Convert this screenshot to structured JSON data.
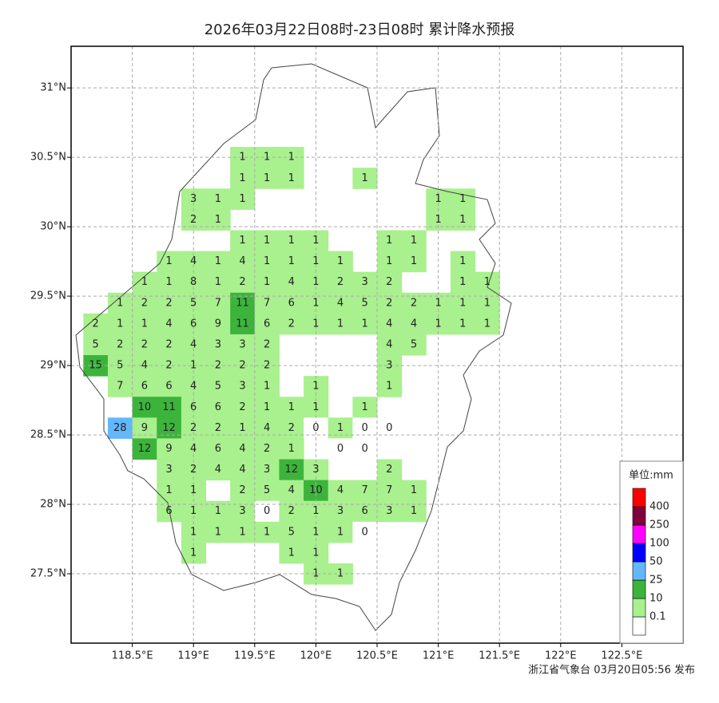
{
  "map": {
    "title": "2026年03月22日08时-23日08时 累计降水预报",
    "footer": "浙江省气象台 03月20日05:56 发布",
    "xlim": [
      118,
      123
    ],
    "ylim": [
      27,
      31.3
    ],
    "xticks": [
      {
        "value": 118.5,
        "label": "118.5°E"
      },
      {
        "value": 119,
        "label": "119°E"
      },
      {
        "value": 119.5,
        "label": "119.5°E"
      },
      {
        "value": 120,
        "label": "120°E"
      },
      {
        "value": 120.5,
        "label": "120.5°E"
      },
      {
        "value": 121,
        "label": "121°E"
      },
      {
        "value": 121.5,
        "label": "121.5°E"
      },
      {
        "value": 122,
        "label": "122°E"
      },
      {
        "value": 122.5,
        "label": "122.5°E"
      }
    ],
    "yticks": [
      {
        "value": 27.5,
        "label": "27.5°N"
      },
      {
        "value": 28,
        "label": "28°N"
      },
      {
        "value": 28.5,
        "label": "28.5°N"
      },
      {
        "value": 29,
        "label": "29°N"
      },
      {
        "value": 29.5,
        "label": "29.5°N"
      },
      {
        "value": 30,
        "label": "30°N"
      },
      {
        "value": 30.5,
        "label": "30.5°N"
      },
      {
        "value": 31,
        "label": "31°N"
      }
    ],
    "grid": true,
    "lons": [
      118.2,
      118.4,
      118.6,
      118.8,
      119.0,
      119.2,
      119.4,
      119.6,
      119.8,
      120.0,
      120.2,
      120.4,
      120.6,
      120.8,
      121.0,
      121.2,
      121.4
    ],
    "lats": [
      30.5,
      30.35,
      30.2,
      30.05,
      29.9,
      29.75,
      29.6,
      29.45,
      29.3,
      29.15,
      29.0,
      28.85,
      28.7,
      28.55,
      28.4,
      28.25,
      28.1,
      27.95,
      27.8,
      27.65,
      27.5
    ],
    "values": [
      [
        null,
        null,
        null,
        null,
        null,
        null,
        1,
        1,
        1,
        null,
        null,
        null,
        null,
        null,
        null,
        null,
        null
      ],
      [
        null,
        null,
        null,
        null,
        null,
        null,
        1,
        1,
        1,
        null,
        null,
        1,
        null,
        null,
        null,
        null,
        null
      ],
      [
        null,
        null,
        null,
        null,
        3,
        1,
        1,
        null,
        null,
        null,
        null,
        null,
        null,
        null,
        1,
        1,
        null
      ],
      [
        null,
        null,
        null,
        null,
        2,
        1,
        null,
        null,
        null,
        null,
        null,
        null,
        null,
        null,
        1,
        1,
        null
      ],
      [
        null,
        null,
        null,
        null,
        null,
        null,
        1,
        1,
        1,
        1,
        null,
        null,
        1,
        1,
        null,
        null,
        null
      ],
      [
        null,
        null,
        null,
        1,
        4,
        1,
        4,
        1,
        1,
        1,
        1,
        null,
        1,
        1,
        null,
        1,
        null
      ],
      [
        null,
        null,
        1,
        1,
        8,
        1,
        2,
        1,
        4,
        1,
        2,
        3,
        2,
        null,
        null,
        1,
        1
      ],
      [
        null,
        1,
        2,
        2,
        5,
        7,
        11,
        7,
        6,
        1,
        4,
        5,
        2,
        2,
        1,
        1,
        1
      ],
      [
        2,
        1,
        1,
        4,
        6,
        9,
        11,
        6,
        2,
        1,
        1,
        1,
        4,
        4,
        1,
        1,
        1
      ],
      [
        5,
        2,
        2,
        2,
        4,
        3,
        3,
        2,
        null,
        null,
        null,
        null,
        4,
        5,
        null,
        null,
        null
      ],
      [
        15,
        5,
        4,
        2,
        1,
        2,
        2,
        2,
        null,
        null,
        null,
        null,
        3,
        null,
        null,
        null,
        null
      ],
      [
        null,
        7,
        6,
        6,
        4,
        5,
        3,
        1,
        null,
        1,
        null,
        null,
        1,
        null,
        null,
        null,
        null
      ],
      [
        null,
        null,
        10,
        11,
        6,
        6,
        2,
        1,
        1,
        1,
        null,
        1,
        null,
        null,
        null,
        null,
        null
      ],
      [
        null,
        28,
        9,
        12,
        2,
        2,
        1,
        4,
        2,
        0,
        1,
        0,
        0,
        null,
        null,
        null,
        null
      ],
      [
        null,
        null,
        12,
        9,
        4,
        6,
        4,
        2,
        1,
        null,
        0,
        0,
        null,
        null,
        null,
        null,
        null
      ],
      [
        null,
        null,
        null,
        3,
        2,
        4,
        4,
        3,
        12,
        3,
        null,
        null,
        2,
        null,
        null,
        null,
        null
      ],
      [
        null,
        null,
        null,
        1,
        1,
        null,
        2,
        5,
        4,
        10,
        4,
        7,
        7,
        1,
        null,
        null,
        null
      ],
      [
        null,
        null,
        null,
        6,
        1,
        1,
        3,
        0,
        2,
        1,
        3,
        6,
        3,
        1,
        null,
        null,
        null
      ],
      [
        null,
        null,
        null,
        null,
        1,
        1,
        1,
        1,
        5,
        1,
        1,
        0,
        null,
        null,
        null,
        null,
        null
      ],
      [
        null,
        null,
        null,
        null,
        1,
        null,
        null,
        null,
        1,
        1,
        null,
        null,
        null,
        null,
        null,
        null,
        null
      ],
      [
        null,
        null,
        null,
        null,
        null,
        null,
        null,
        null,
        null,
        1,
        1,
        null,
        null,
        null,
        null,
        null,
        null
      ]
    ],
    "legend": {
      "title": "单位:mm",
      "levels": [
        0.1,
        10,
        25,
        50,
        100,
        250,
        400
      ],
      "colors": [
        "#ffffff",
        "#a9f08e",
        "#3cb43c",
        "#61b8ff",
        "#0000fe",
        "#ff00ff",
        "#800040",
        "#ff0000"
      ]
    }
  }
}
